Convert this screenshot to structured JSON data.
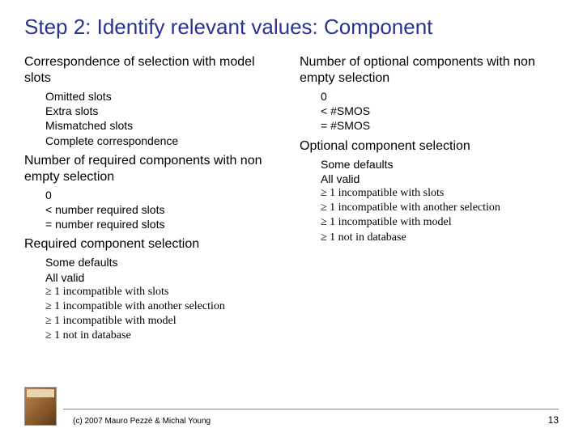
{
  "title": "Step 2: Identify relevant values: Component",
  "title_color": "#283393",
  "title_fontsize": 26,
  "heading_fontsize": 16,
  "item_fontsize": 14,
  "text_color": "#000000",
  "background_color": "#ffffff",
  "left": {
    "sec1": {
      "heading": "Correspondence of selection with model slots",
      "items": [
        "Omitted slots",
        "Extra slots",
        "Mismatched slots",
        "Complete correspondence"
      ]
    },
    "sec2": {
      "heading": "Number of required components with non empty selection",
      "items": [
        "0",
        "< number required slots",
        "= number required slots"
      ]
    },
    "sec3": {
      "heading": "Required component selection",
      "items": [
        "Some defaults",
        "All valid",
        "≥ 1 incompatible with slots",
        "≥ 1 incompatible with another selection",
        "≥ 1 incompatible with model",
        "≥ 1 not in database"
      ]
    }
  },
  "right": {
    "sec1": {
      "heading": "Number of optional components with non empty selection",
      "items": [
        "0",
        "< #SMOS",
        "= #SMOS"
      ]
    },
    "sec2": {
      "heading": "Optional component selection",
      "items": [
        "Some defaults",
        "All valid",
        "≥ 1 incompatible with slots",
        "≥ 1 incompatible with another selection",
        "≥ 1 incompatible with model",
        "≥ 1 not in database"
      ]
    }
  },
  "footer": {
    "copyright": "(c) 2007 Mauro Pezzè & Michal Young",
    "page_number": "13"
  }
}
